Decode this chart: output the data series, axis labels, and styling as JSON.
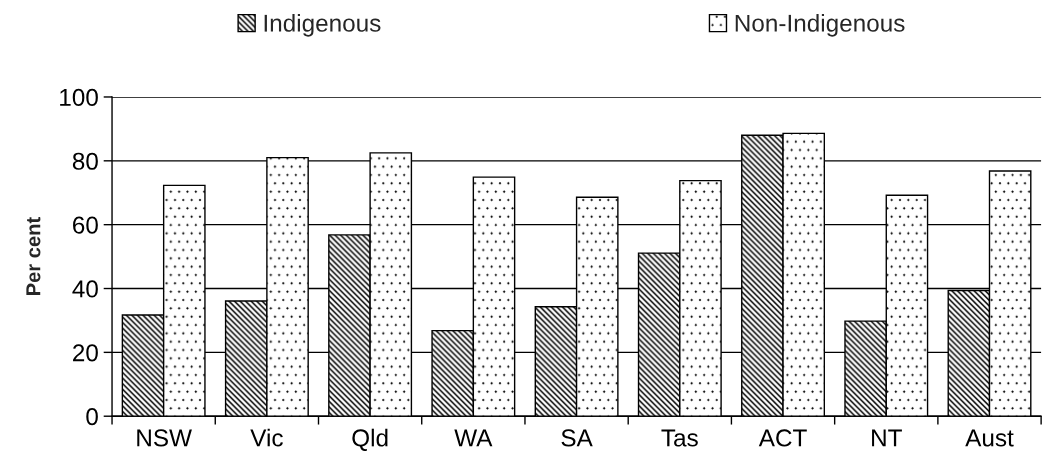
{
  "chart_data": {
    "type": "bar",
    "ylabel": "Per cent",
    "categories": [
      "NSW",
      "Vic",
      "Qld",
      "WA",
      "SA",
      "Tas",
      "ACT",
      "NT",
      "Aust"
    ],
    "series": [
      {
        "name": "Indigenous",
        "color": "#000000",
        "values": [
          31.7,
          36.1,
          56.8,
          26.8,
          34.3,
          51.1,
          88.0,
          29.8,
          39.4
        ]
      },
      {
        "name": "Non-Indigenous",
        "color": "#000000",
        "values": [
          72.3,
          81.0,
          82.5,
          74.9,
          68.6,
          73.8,
          88.6,
          69.2,
          76.8
        ]
      }
    ],
    "ylim": [
      0,
      100
    ],
    "yticks": [
      0,
      20,
      40,
      60,
      80,
      100
    ],
    "grid": "y",
    "legend": "top"
  }
}
